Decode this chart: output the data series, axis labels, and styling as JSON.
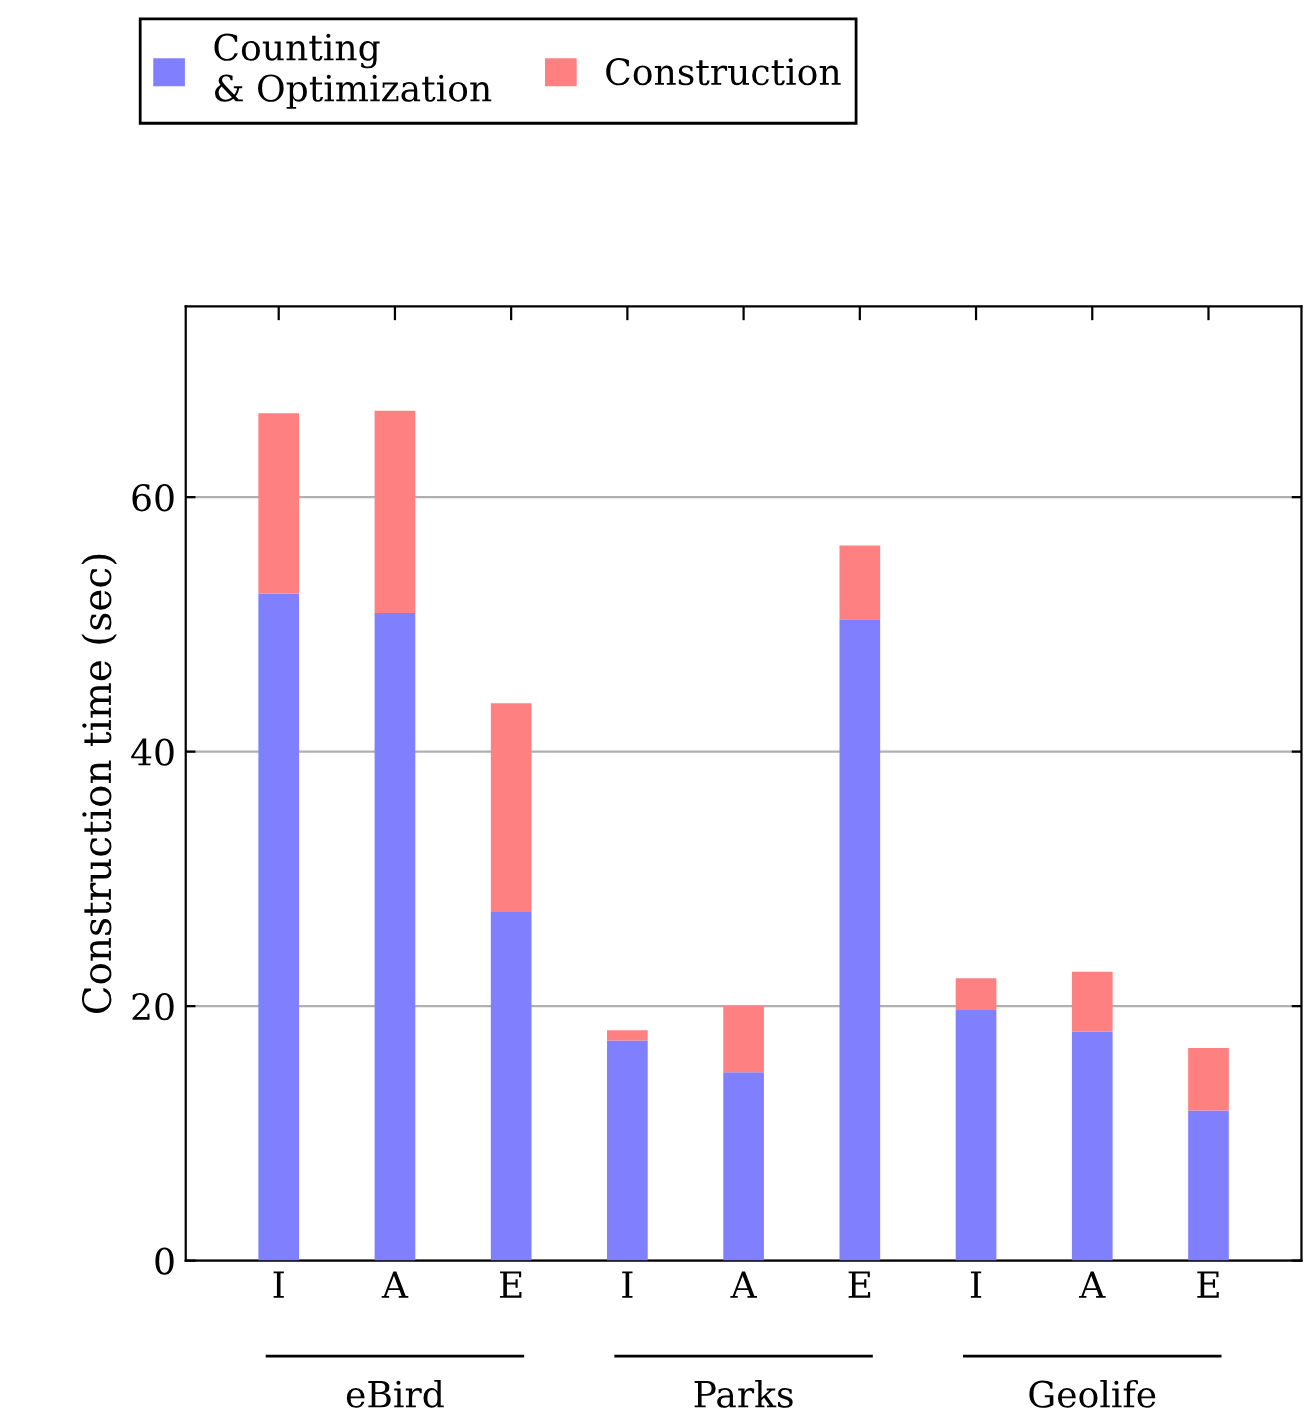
{
  "chart_data": {
    "type": "bar",
    "stacked": true,
    "ylabel": "Construction time (sec)",
    "categories": [
      "I",
      "A",
      "E",
      "I",
      "A",
      "E",
      "I",
      "A",
      "E"
    ],
    "series": [
      {
        "name": "Counting\n& Optimization",
        "color": "#8080ff",
        "values": [
          52.4,
          50.9,
          27.4,
          17.3,
          14.8,
          50.4,
          19.7,
          18.0,
          11.8
        ]
      },
      {
        "name": "Construction",
        "color": "#ff8080",
        "values": [
          14.2,
          15.9,
          16.4,
          0.8,
          5.2,
          5.8,
          2.5,
          4.7,
          4.9
        ]
      }
    ],
    "ylim": [
      0,
      75
    ],
    "yticks": [
      0,
      20,
      40,
      60
    ],
    "grid": "y",
    "legend": "top",
    "annotations": [
      "eBird",
      "Parks",
      "Geolife"
    ]
  }
}
